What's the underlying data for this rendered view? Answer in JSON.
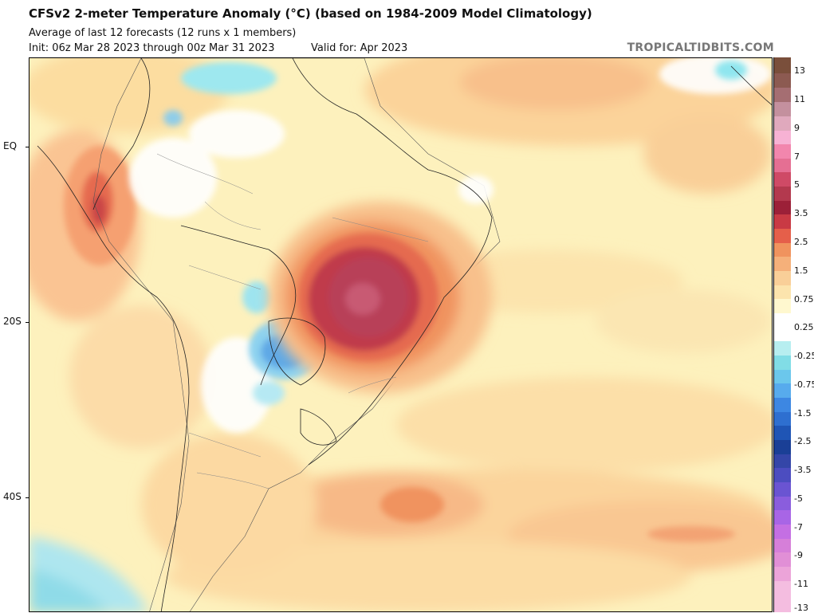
{
  "header": {
    "title": "CFSv2 2-meter Temperature Anomaly (°C) (based on 1984-2009 Model Climatology)",
    "subtitle": "Average of last 12 forecasts (12 runs x 1 members)",
    "init": "Init: 06z Mar 28 2023 through 00z Mar 31 2023",
    "valid": "Valid for: Apr 2023",
    "brand": "TROPICALTIDBITS.COM"
  },
  "map": {
    "region": "South America and South Atlantic",
    "lat_labels": [
      "EQ",
      "20S",
      "40S"
    ]
  },
  "colorbar": {
    "labels": [
      "13",
      "11",
      "9",
      "7",
      "5",
      "3.5",
      "2.5",
      "1.5",
      "0.75",
      "0.25",
      "-0.25",
      "-0.75",
      "-1.5",
      "-2.5",
      "-3.5",
      "-5",
      "-7",
      "-9",
      "-11",
      "-13"
    ]
  }
}
